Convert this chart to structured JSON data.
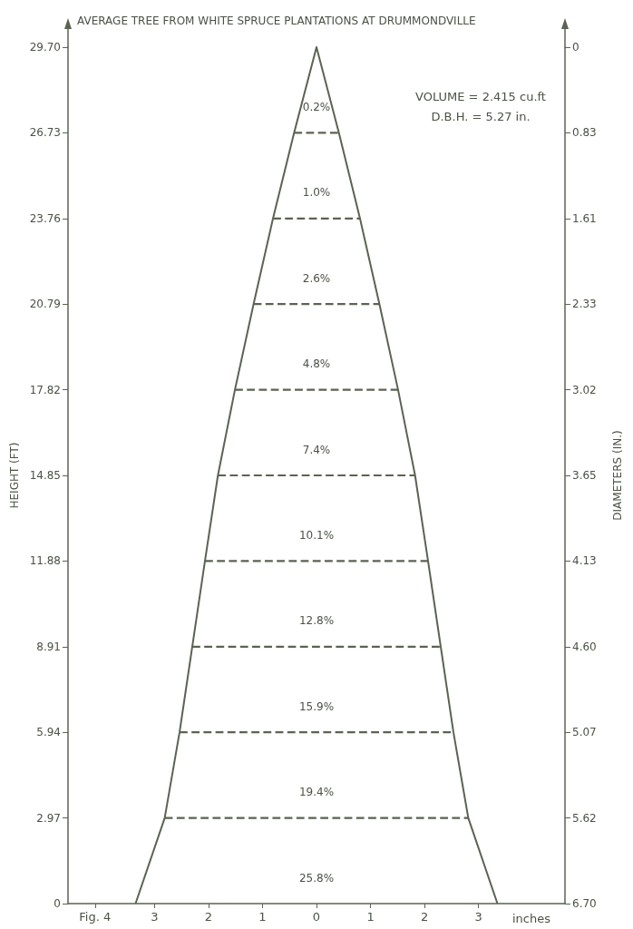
{
  "chart_data": {
    "type": "line",
    "title": "AVERAGE TREE FROM WHITE SPRUCE PLANTATIONS AT DRUMMONDVILLE",
    "xlabel": "inches",
    "ylabel": "HEIGHT (FT)",
    "y2label": "DIAMETERS (IN.)",
    "xlim": [
      -4.6,
      4.6
    ],
    "xticks": [
      {
        "value": -4.1,
        "label": "Fig. 4"
      },
      {
        "value": -3,
        "label": "3"
      },
      {
        "value": -2,
        "label": "2"
      },
      {
        "value": -1,
        "label": "1"
      },
      0,
      1,
      2,
      3
    ],
    "ylim": [
      0,
      29.7
    ],
    "yticks": [
      0,
      2.97,
      5.94,
      8.91,
      11.88,
      14.85,
      17.82,
      20.79,
      23.76,
      26.73,
      {
        "value": 29.7,
        "label": "29.70"
      }
    ],
    "y2_categories": [
      "0",
      "0.83",
      "1.61",
      "2.33",
      "3.02",
      "3.65",
      "4.13",
      "4.60",
      "5.07",
      "5.62",
      "6.70"
    ],
    "marker": "none",
    "grid": false,
    "series": [
      {
        "color": "#5b6352",
        "line_style": "solid",
        "x": [
          -3.35,
          -2.81,
          -2.535,
          -2.3,
          -2.065,
          -1.825,
          -1.51,
          -1.165,
          -0.805,
          -0.415,
          0,
          0.415,
          0.805,
          1.165,
          1.51,
          1.825,
          2.065,
          2.3,
          2.535,
          2.81,
          3.35
        ],
        "values": [
          0,
          2.97,
          5.94,
          8.91,
          11.88,
          14.85,
          17.82,
          20.79,
          23.76,
          26.73,
          29.7,
          26.73,
          23.76,
          20.79,
          17.82,
          14.85,
          11.88,
          8.91,
          5.94,
          2.97,
          0
        ]
      },
      {
        "color": "#5b6352",
        "line_style": "dashed",
        "x": [
          -2.81,
          2.81,
          null,
          -2.535,
          2.535,
          null,
          -2.3,
          2.3,
          null,
          -2.065,
          2.065,
          null,
          -1.825,
          1.825,
          null,
          -1.51,
          1.51,
          null,
          -1.165,
          1.165,
          null,
          -0.805,
          0.805,
          null,
          -0.415,
          0.415
        ],
        "values": [
          2.97,
          2.97,
          null,
          5.94,
          5.94,
          null,
          8.91,
          8.91,
          null,
          11.88,
          11.88,
          null,
          14.85,
          14.85,
          null,
          17.82,
          17.82,
          null,
          20.79,
          20.79,
          null,
          23.76,
          23.76,
          null,
          26.73,
          26.73
        ]
      }
    ],
    "annotations": [
      "0.2%",
      "1.0%",
      "2.6%",
      "4.8%",
      "7.4%",
      "10.1%",
      "12.8%",
      "15.9%",
      "19.4%",
      "25.8%",
      "VOLUME = 2.415 cu.ft",
      "D.B.H. = 5.27 in."
    ]
  }
}
